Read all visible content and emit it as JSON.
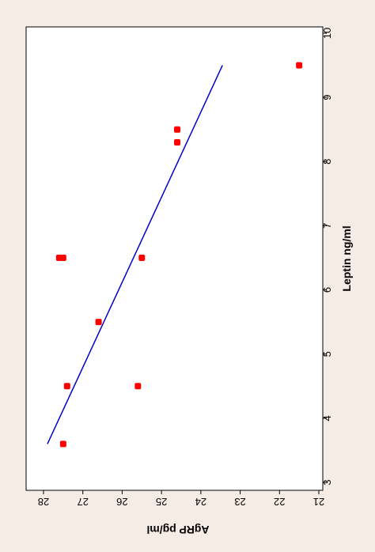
{
  "chart_data": {
    "type": "scatter",
    "orientation": "rotated-90",
    "title": "",
    "xlabel": "Leptin ng/ml",
    "ylabel": "AgRP pg/ml",
    "xlim": [
      3,
      10
    ],
    "ylim": [
      21,
      28
    ],
    "x_ticks": [
      3,
      4,
      5,
      6,
      7,
      8,
      9,
      10
    ],
    "y_ticks": [
      21,
      22,
      23,
      24,
      25,
      26,
      27,
      28
    ],
    "grid": false,
    "legend": "none",
    "points": [
      {
        "x": 3.6,
        "y": 27.5
      },
      {
        "x": 4.5,
        "y": 27.4
      },
      {
        "x": 4.5,
        "y": 25.6
      },
      {
        "x": 5.5,
        "y": 26.6
      },
      {
        "x": 6.5,
        "y": 27.6
      },
      {
        "x": 6.5,
        "y": 27.5
      },
      {
        "x": 6.5,
        "y": 25.5
      },
      {
        "x": 8.3,
        "y": 24.6
      },
      {
        "x": 8.5,
        "y": 24.6
      },
      {
        "x": 9.5,
        "y": 21.5
      }
    ],
    "fit_line": {
      "x": [
        3.6,
        9.5
      ],
      "y": [
        27.9,
        23.45
      ]
    },
    "colors": {
      "points": "#ff0000",
      "fit_line": "#0000cc",
      "background": "#f5ece6",
      "plot_area": "#ffffff"
    }
  }
}
